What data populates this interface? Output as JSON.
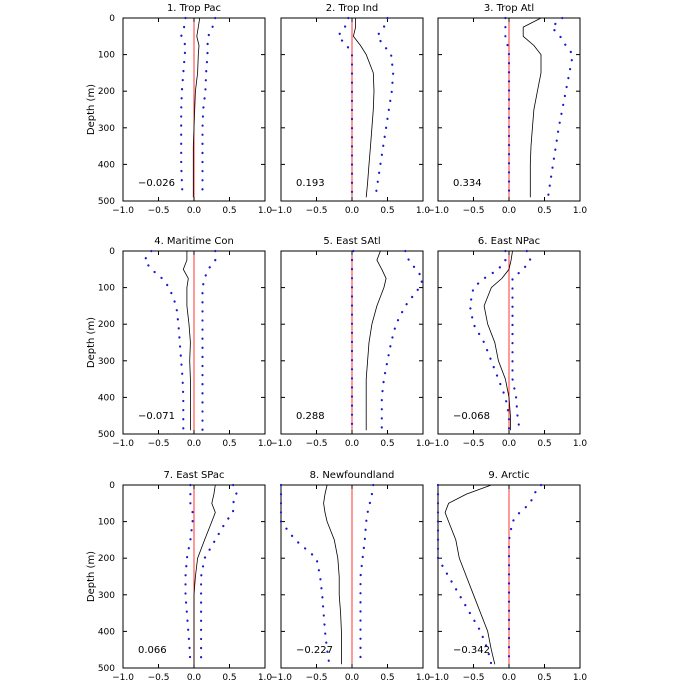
{
  "chart_data": {
    "type": "line",
    "layout": "3x3 grid of vertical depth profiles",
    "xlim": [
      -1.0,
      1.0
    ],
    "ylim": [
      500,
      0
    ],
    "ylabel": "Depth (m)",
    "xticks": [
      "-1.0",
      "-0.5",
      "0.0",
      "0.5",
      "1.0"
    ],
    "yticks": [
      "0",
      "100",
      "200",
      "300",
      "400",
      "500"
    ],
    "grid": false,
    "colors": {
      "zero_line": "#ff2020",
      "central": "#000000",
      "bounds": "#1a1acc"
    },
    "series_legend": "none",
    "depth": [
      0,
      25,
      50,
      75,
      100,
      150,
      200,
      250,
      300,
      350,
      400,
      450,
      490
    ],
    "panels": [
      {
        "title": "1. Trop Pac",
        "label": "−0.026",
        "central": [
          0.08,
          0.06,
          0.04,
          0.07,
          0.06,
          0.05,
          0.02,
          0.01,
          0.0,
          -0.01,
          -0.01,
          -0.01,
          -0.01
        ],
        "lower": [
          -0.12,
          -0.14,
          -0.18,
          -0.12,
          -0.13,
          -0.15,
          -0.17,
          -0.18,
          -0.18,
          -0.18,
          -0.18,
          -0.17,
          -0.16
        ],
        "upper": [
          0.3,
          0.26,
          0.2,
          0.19,
          0.19,
          0.17,
          0.16,
          0.13,
          0.12,
          0.12,
          0.12,
          0.12,
          0.12
        ]
      },
      {
        "title": "2. Trop Ind",
        "label": "0.193",
        "central": [
          0.05,
          0.05,
          0.02,
          0.12,
          0.2,
          0.3,
          0.31,
          0.3,
          0.28,
          0.26,
          0.24,
          0.22,
          0.2
        ],
        "lower": [
          -0.05,
          -0.1,
          -0.2,
          -0.07,
          0.0,
          0.0,
          0.0,
          0.0,
          0.0,
          0.0,
          0.0,
          0.0,
          0.0
        ],
        "upper": [
          0.5,
          0.45,
          0.35,
          0.45,
          0.55,
          0.58,
          0.56,
          0.52,
          0.48,
          0.44,
          0.4,
          0.36,
          0.33
        ]
      },
      {
        "title": "3. Trop Atl",
        "label": "0.334",
        "central": [
          0.45,
          0.2,
          0.2,
          0.35,
          0.45,
          0.45,
          0.4,
          0.35,
          0.33,
          0.31,
          0.3,
          0.3,
          0.3
        ],
        "lower": [
          -0.05,
          -0.05,
          -0.05,
          -0.02,
          0.0,
          0.0,
          0.0,
          0.0,
          0.0,
          0.0,
          0.0,
          0.0,
          0.0
        ],
        "upper": [
          0.75,
          0.6,
          0.72,
          0.8,
          0.9,
          0.85,
          0.8,
          0.75,
          0.7,
          0.66,
          0.62,
          0.58,
          0.55
        ]
      },
      {
        "title": "4. Maritime Con",
        "label": "−0.071",
        "central": [
          -0.1,
          -0.1,
          -0.15,
          -0.08,
          -0.1,
          -0.1,
          -0.07,
          -0.05,
          -0.06,
          -0.05,
          -0.05,
          -0.05,
          -0.05
        ],
        "lower": [
          -0.6,
          -0.7,
          -0.6,
          -0.45,
          -0.35,
          -0.25,
          -0.22,
          -0.2,
          -0.18,
          -0.16,
          -0.15,
          -0.15,
          -0.15
        ],
        "upper": [
          0.3,
          0.3,
          0.2,
          0.15,
          0.12,
          0.12,
          0.12,
          0.12,
          0.12,
          0.12,
          0.12,
          0.12,
          0.12
        ]
      },
      {
        "title": "5. East SAtl",
        "label": "0.288",
        "central": [
          0.4,
          0.35,
          0.42,
          0.48,
          0.45,
          0.35,
          0.28,
          0.24,
          0.22,
          0.2,
          0.2,
          0.2,
          0.2
        ],
        "lower": [
          0.02,
          0.0,
          0.0,
          0.0,
          0.0,
          0.0,
          0.0,
          0.0,
          0.0,
          0.0,
          0.0,
          0.0,
          0.0
        ],
        "upper": [
          0.75,
          0.8,
          0.9,
          1.0,
          0.95,
          0.75,
          0.62,
          0.55,
          0.5,
          0.45,
          0.42,
          0.42,
          0.42
        ]
      },
      {
        "title": "6. East NPac",
        "label": "−0.068",
        "central": [
          0.05,
          0.03,
          0.0,
          -0.1,
          -0.25,
          -0.35,
          -0.3,
          -0.2,
          -0.15,
          -0.05,
          0.0,
          0.02,
          0.02
        ],
        "lower": [
          -0.05,
          -0.05,
          -0.15,
          -0.35,
          -0.5,
          -0.55,
          -0.5,
          -0.35,
          -0.25,
          -0.15,
          -0.05,
          0.0,
          0.0
        ],
        "upper": [
          0.25,
          0.3,
          0.2,
          0.05,
          0.05,
          0.05,
          0.05,
          0.05,
          0.05,
          0.05,
          0.1,
          0.12,
          0.15
        ]
      },
      {
        "title": "7. East SPac",
        "label": "0.066",
        "central": [
          0.3,
          0.28,
          0.25,
          0.3,
          0.25,
          0.15,
          0.05,
          0.02,
          0.0,
          0.0,
          0.0,
          0.0,
          0.0
        ],
        "lower": [
          -0.05,
          -0.05,
          -0.05,
          -0.02,
          -0.02,
          -0.05,
          -0.1,
          -0.12,
          -0.12,
          -0.1,
          -0.08,
          -0.06,
          -0.05
        ],
        "upper": [
          0.55,
          0.6,
          0.55,
          0.55,
          0.45,
          0.3,
          0.15,
          0.1,
          0.1,
          0.1,
          0.1,
          0.1,
          0.1
        ]
      },
      {
        "title": "8. Newfoundland",
        "label": "−0.227",
        "central": [
          -0.35,
          -0.38,
          -0.4,
          -0.38,
          -0.35,
          -0.25,
          -0.2,
          -0.18,
          -0.18,
          -0.16,
          -0.15,
          -0.15,
          -0.15
        ],
        "lower": [
          -1.0,
          -1.0,
          -1.0,
          -1.0,
          -1.0,
          -0.8,
          -0.5,
          -0.45,
          -0.42,
          -0.4,
          -0.38,
          -0.35,
          -0.32
        ],
        "upper": [
          0.3,
          0.28,
          0.25,
          0.22,
          0.2,
          0.18,
          0.15,
          0.12,
          0.12,
          0.12,
          0.12,
          0.12,
          0.12
        ]
      },
      {
        "title": "9. Arctic",
        "label": "−0.342",
        "central": [
          -0.25,
          -0.6,
          -0.85,
          -0.9,
          -0.85,
          -0.75,
          -0.7,
          -0.6,
          -0.5,
          -0.4,
          -0.3,
          -0.25,
          -0.2
        ],
        "lower": [
          -1.0,
          -1.0,
          -1.0,
          -1.0,
          -1.0,
          -1.0,
          -1.0,
          -0.85,
          -0.7,
          -0.55,
          -0.4,
          -0.3,
          -0.25
        ],
        "upper": [
          0.45,
          0.35,
          0.3,
          0.15,
          0.05,
          0.0,
          0.0,
          0.0,
          0.0,
          0.0,
          0.0,
          0.0,
          0.0
        ]
      }
    ]
  }
}
